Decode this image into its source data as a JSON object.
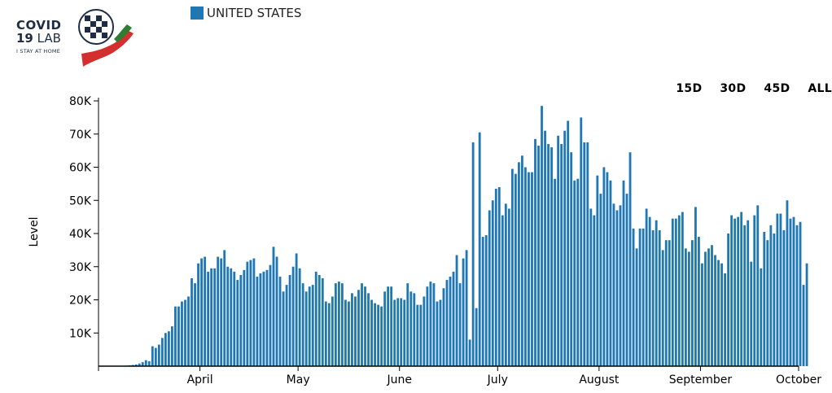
{
  "logo": {
    "line1": "COVID",
    "line2_bold": "19",
    "line2_rest": " LAB",
    "line3": "I STAY AT HOME"
  },
  "legend": {
    "label": "UNITED STATES",
    "color": "#1f77b4"
  },
  "range_buttons": [
    "15D",
    "30D",
    "45D",
    "ALL"
  ],
  "chart_data": {
    "type": "bar",
    "ylabel": "Level",
    "ylim": [
      0,
      80000
    ],
    "y_ticks": [
      "10K",
      "20K",
      "30K",
      "40K",
      "50K",
      "60K",
      "70K",
      "80K"
    ],
    "x_ticks": [
      "April",
      "May",
      "June",
      "July",
      "August",
      "September",
      "October"
    ],
    "x_range": [
      "2020-03-01",
      "2020-10-01"
    ],
    "first_date": "2020-03-08",
    "bar_color": "#1f77b4",
    "values": [
      100,
      150,
      250,
      350,
      500,
      800,
      1200,
      1800,
      1500,
      6000,
      5500,
      6500,
      8500,
      10000,
      10500,
      12000,
      18000,
      18000,
      19500,
      20000,
      21000,
      26500,
      25000,
      31000,
      32500,
      33000,
      28500,
      29500,
      29500,
      33000,
      32500,
      35000,
      30000,
      29500,
      28500,
      26000,
      27500,
      29000,
      31500,
      32000,
      32500,
      27000,
      28000,
      28500,
      29000,
      30500,
      36000,
      33000,
      27000,
      22500,
      24500,
      27500,
      30000,
      34000,
      29500,
      25000,
      22500,
      24000,
      24500,
      28500,
      27500,
      26500,
      19500,
      19000,
      21000,
      25000,
      25500,
      25000,
      20000,
      19500,
      22000,
      21000,
      23000,
      25000,
      24000,
      22000,
      20000,
      19000,
      18500,
      18000,
      22500,
      24000,
      24000,
      20000,
      20500,
      20500,
      20000,
      25000,
      22500,
      22000,
      18500,
      18500,
      21000,
      24000,
      25500,
      25000,
      19500,
      20000,
      23500,
      26000,
      27000,
      28500,
      33500,
      25000,
      32500,
      35000,
      8000,
      67500,
      17500,
      70500,
      39000,
      39500,
      47000,
      50000,
      53500,
      54000,
      45500,
      49000,
      47500,
      59500,
      58000,
      61500,
      63500,
      60000,
      58500,
      58500,
      68500,
      66500,
      78500,
      71000,
      67000,
      66000,
      56500,
      69500,
      67000,
      71000,
      74000,
      64500,
      56000,
      56500,
      75000,
      67500,
      67500,
      47500,
      45500,
      57500,
      52000,
      60000,
      58500,
      56000,
      49000,
      47000,
      48500,
      56000,
      52000,
      64500,
      41500,
      35500,
      41500,
      41500,
      47500,
      45000,
      41000,
      44000,
      41000,
      35000,
      38000,
      38000,
      44500,
      44500,
      45500,
      46500,
      35500,
      34500,
      38000,
      48000,
      39000,
      31000,
      34500,
      35500,
      36500,
      33500,
      32000,
      31000,
      28000,
      40000,
      45500,
      44500,
      45000,
      46500,
      42500,
      44000,
      31500,
      45500,
      48500,
      29500,
      40500,
      38000,
      42500,
      40000,
      46000,
      46000,
      41000,
      50000,
      44500,
      45000,
      42500,
      43500,
      24500,
      31000
    ]
  }
}
